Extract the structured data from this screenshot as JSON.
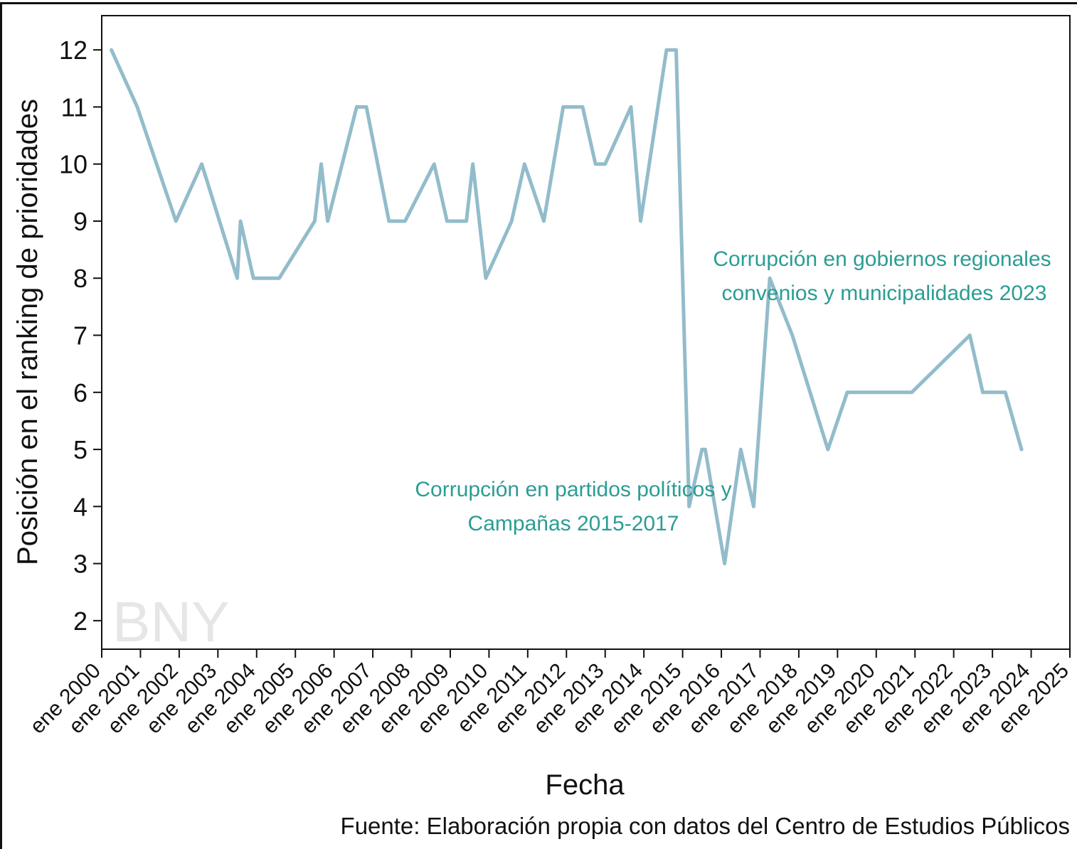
{
  "chart_data": {
    "type": "line",
    "ylabel": "Posición en el ranking de prioridades",
    "xlabel": "Fecha",
    "source": "Fuente: Elaboración propia con datos del Centro de Estudios Públicos",
    "watermark": "BNY",
    "ylim": [
      1.5,
      12.6
    ],
    "yticks": [
      2,
      3,
      4,
      5,
      6,
      7,
      8,
      9,
      10,
      11,
      12
    ],
    "xlim": [
      "2000-01",
      "2025-01"
    ],
    "xtick_labels": [
      "ene 2000",
      "ene 2001",
      "ene 2002",
      "ene 2003",
      "ene 2004",
      "ene 2005",
      "ene 2006",
      "ene 2007",
      "ene 2008",
      "ene 2009",
      "ene 2010",
      "ene 2011",
      "ene 2012",
      "ene 2013",
      "ene 2014",
      "ene 2015",
      "ene 2016",
      "ene 2017",
      "ene 2018",
      "ene 2019",
      "ene 2020",
      "ene 2021",
      "ene 2022",
      "ene 2023",
      "ene 2024",
      "ene 2025"
    ],
    "line_color": "#93bccb",
    "annotation_color": "#2a9d94",
    "series": [
      {
        "x": [
          "2000-04",
          "2000-12",
          "2001-12",
          "2002-08",
          "2003-07",
          "2003-08",
          "2003-12",
          "2004-08",
          "2005-07",
          "2005-09",
          "2005-11",
          "2006-08",
          "2006-11",
          "2007-06",
          "2007-11",
          "2008-08",
          "2008-12",
          "2009-06",
          "2009-08",
          "2009-12",
          "2010-08",
          "2010-12",
          "2011-06",
          "2011-12",
          "2012-06",
          "2012-10",
          "2013-01",
          "2013-09",
          "2013-12",
          "2014-08",
          "2014-11",
          "2015-03",
          "2015-07",
          "2015-08",
          "2016-02",
          "2016-07",
          "2016-11",
          "2017-04",
          "2017-11",
          "2018-10",
          "2019-04",
          "2019-10",
          "2020-06",
          "2020-12",
          "2022-06",
          "2022-10",
          "2023-05",
          "2023-10"
        ],
        "y": [
          12,
          11,
          9,
          10,
          8,
          9,
          8,
          8,
          9,
          10,
          9,
          11,
          11,
          9,
          9,
          10,
          9,
          9,
          10,
          8,
          9,
          10,
          9,
          11,
          11,
          10,
          10,
          11,
          9,
          12,
          12,
          4,
          5,
          5,
          3,
          5,
          4,
          8,
          7,
          5,
          6,
          6,
          6,
          6,
          7,
          6,
          6,
          5
        ]
      }
    ],
    "annotations": [
      {
        "lines": [
          "Corrupción en partidos políticos y",
          "Campañas 2015-2017"
        ]
      },
      {
        "lines": [
          "Corrupción en gobiernos regionales",
          "convenios y municipalidades 2023"
        ]
      }
    ]
  }
}
